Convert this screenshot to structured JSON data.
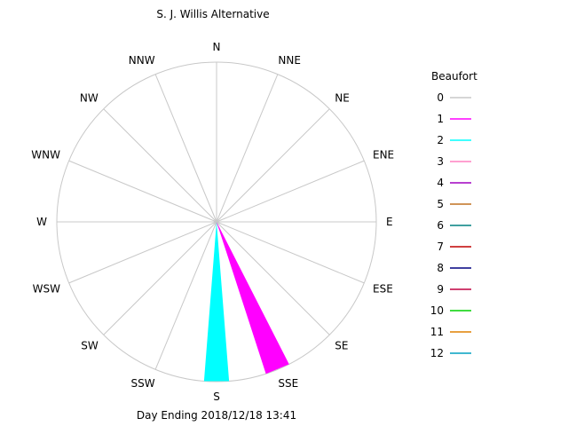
{
  "chart_data": {
    "type": "wind-rose",
    "title": "S. J. Willis Alternative",
    "footer": "Day Ending 2018/12/18 13:41",
    "directions": [
      "N",
      "NNE",
      "NE",
      "ENE",
      "E",
      "ESE",
      "SE",
      "SSE",
      "S",
      "SSW",
      "SW",
      "WSW",
      "W",
      "WNW",
      "NW",
      "NNW"
    ],
    "legend": {
      "title": "Beaufort",
      "entries": [
        {
          "label": "0",
          "color": "#c8c8c8"
        },
        {
          "label": "1",
          "color": "#ff00ff"
        },
        {
          "label": "2",
          "color": "#00ffff"
        },
        {
          "label": "3",
          "color": "#ff80c0"
        },
        {
          "label": "4",
          "color": "#a000c0"
        },
        {
          "label": "5",
          "color": "#c07020"
        },
        {
          "label": "6",
          "color": "#008080"
        },
        {
          "label": "7",
          "color": "#c00000"
        },
        {
          "label": "8",
          "color": "#000080"
        },
        {
          "label": "9",
          "color": "#c00040"
        },
        {
          "label": "10",
          "color": "#00d000"
        },
        {
          "label": "11",
          "color": "#e08000"
        },
        {
          "label": "12",
          "color": "#00a0c0"
        }
      ]
    },
    "series": [
      {
        "direction": "S",
        "segments": [
          {
            "beaufort": "2",
            "fraction": 1.0
          }
        ]
      },
      {
        "direction": "SSE",
        "segments": [
          {
            "beaufort": "2",
            "fraction": 0.0
          },
          {
            "beaufort": "1",
            "fraction": 1.0
          }
        ]
      }
    ],
    "grid": true
  }
}
